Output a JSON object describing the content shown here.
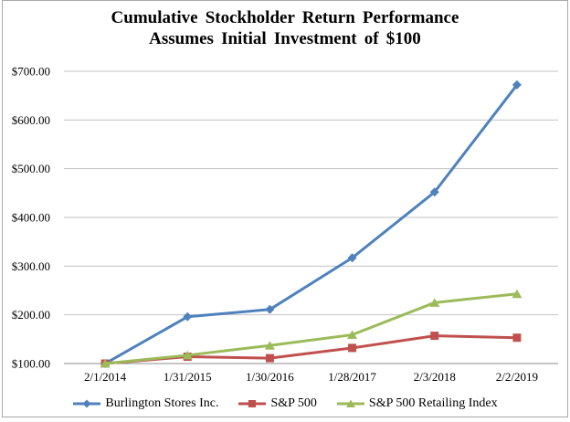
{
  "chart": {
    "title_line1": "Cumulative Stockholder Return Performance",
    "title_line2": "Assumes Initial Investment of $100"
  },
  "chart_data": {
    "type": "line",
    "title": "Cumulative Stockholder Return Performance - Assumes Initial Investment of $100",
    "x": [
      "2/1/2014",
      "1/31/2015",
      "1/30/2016",
      "1/28/2017",
      "2/3/2018",
      "2/2/2019"
    ],
    "series": [
      {
        "name": "Burlington Stores Inc.",
        "color": "#4F81BD",
        "marker": "diamond",
        "values": [
          100,
          196,
          211,
          317,
          452,
          672
        ]
      },
      {
        "name": "S&P 500",
        "color": "#C0504D",
        "marker": "square",
        "values": [
          100,
          114,
          111,
          132,
          157,
          153
        ]
      },
      {
        "name": "S&P 500 Retailing Index",
        "color": "#9BBB59",
        "marker": "triangle",
        "values": [
          100,
          117,
          137,
          159,
          225,
          243
        ]
      }
    ],
    "ylim": [
      100,
      700
    ],
    "ytick_step": 100,
    "ytick_labels": [
      "$100.00",
      "$200.00",
      "$300.00",
      "$400.00",
      "$500.00",
      "$600.00",
      "$700.00"
    ],
    "xlabel": "",
    "ylabel": "",
    "grid": true,
    "legend_position": "bottom",
    "colors": {
      "gridline": "#c3c3c3",
      "axis_line": "#8c8c8c",
      "text": "#000000",
      "frame_border": "#a8a8a8"
    }
  }
}
